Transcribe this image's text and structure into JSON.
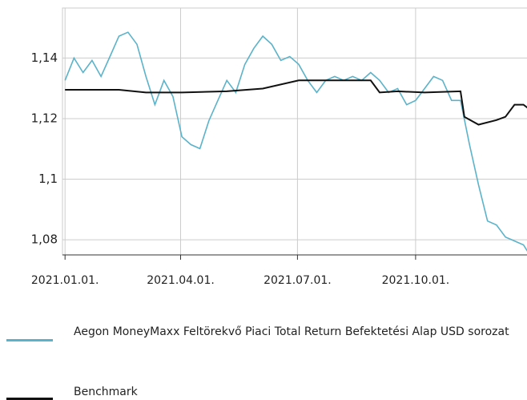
{
  "chart_data": {
    "type": "line",
    "xlim": [
      "2020-12-30",
      "2021-12-28"
    ],
    "xticks": [
      {
        "value": "2021-01-01",
        "label": "2021.01.01."
      },
      {
        "value": "2021-04-01",
        "label": "2021.04.01."
      },
      {
        "value": "2021-07-01",
        "label": "2021.07.01."
      },
      {
        "value": "2021-10-01",
        "label": "2021.10.01."
      }
    ],
    "ylim": [
      1.075,
      1.1565
    ],
    "yticks": [
      {
        "value": 1.08,
        "label": "1,08"
      },
      {
        "value": 1.1,
        "label": "1,1"
      },
      {
        "value": 1.12,
        "label": "1,12"
      },
      {
        "value": 1.14,
        "label": "1,14"
      }
    ],
    "grid": true,
    "series": [
      {
        "name": "Aegon MoneyMaxx Feltörekvő Piaci Total Return Befektetési Alap USD sorozat",
        "color": "#5bb3c9",
        "x": [
          "2021-01-01",
          "2021-01-08",
          "2021-01-15",
          "2021-01-22",
          "2021-01-29",
          "2021-02-05",
          "2021-02-12",
          "2021-02-19",
          "2021-02-26",
          "2021-03-05",
          "2021-03-12",
          "2021-03-19",
          "2021-03-26",
          "2021-04-02",
          "2021-04-09",
          "2021-04-16",
          "2021-04-23",
          "2021-04-30",
          "2021-05-07",
          "2021-05-14",
          "2021-05-21",
          "2021-05-28",
          "2021-06-04",
          "2021-06-11",
          "2021-06-18",
          "2021-06-25",
          "2021-07-02",
          "2021-07-09",
          "2021-07-16",
          "2021-07-23",
          "2021-07-30",
          "2021-08-06",
          "2021-08-13",
          "2021-08-20",
          "2021-08-27",
          "2021-09-03",
          "2021-09-10",
          "2021-09-17",
          "2021-09-24",
          "2021-10-01",
          "2021-10-08",
          "2021-10-15",
          "2021-10-22",
          "2021-10-29",
          "2021-11-05",
          "2021-11-12",
          "2021-11-19",
          "2021-11-26",
          "2021-12-03",
          "2021-12-10",
          "2021-12-17",
          "2021-12-24",
          "2021-12-28"
        ],
        "values": [
          1.1326,
          1.14,
          1.1352,
          1.1392,
          1.1339,
          1.1405,
          1.1472,
          1.1485,
          1.1445,
          1.1339,
          1.1246,
          1.1326,
          1.1273,
          1.114,
          1.1114,
          1.1101,
          1.1193,
          1.126,
          1.1326,
          1.1286,
          1.1379,
          1.1432,
          1.1472,
          1.1445,
          1.1392,
          1.1405,
          1.1379,
          1.1326,
          1.1286,
          1.1326,
          1.1339,
          1.1326,
          1.1339,
          1.1326,
          1.1352,
          1.1326,
          1.1286,
          1.1299,
          1.1246,
          1.126,
          1.1299,
          1.1339,
          1.1326,
          1.126,
          1.126,
          1.1114,
          1.0981,
          1.0862,
          1.0849,
          1.0809,
          1.0796,
          1.0783,
          1.0756
        ]
      },
      {
        "name": "Benchmark",
        "color": "#111111",
        "x": [
          "2021-01-01",
          "2021-02-12",
          "2021-03-05",
          "2021-04-02",
          "2021-05-07",
          "2021-06-04",
          "2021-07-02",
          "2021-08-06",
          "2021-08-27",
          "2021-09-03",
          "2021-09-17",
          "2021-10-08",
          "2021-11-05",
          "2021-11-08",
          "2021-11-19",
          "2021-12-03",
          "2021-12-10",
          "2021-12-17",
          "2021-12-24",
          "2021-12-28"
        ],
        "values": [
          1.1295,
          1.1295,
          1.1286,
          1.1286,
          1.129,
          1.1299,
          1.1326,
          1.1326,
          1.1326,
          1.1286,
          1.129,
          1.1286,
          1.129,
          1.1206,
          1.118,
          1.1195,
          1.1206,
          1.1246,
          1.1246,
          1.1233
        ]
      }
    ]
  }
}
